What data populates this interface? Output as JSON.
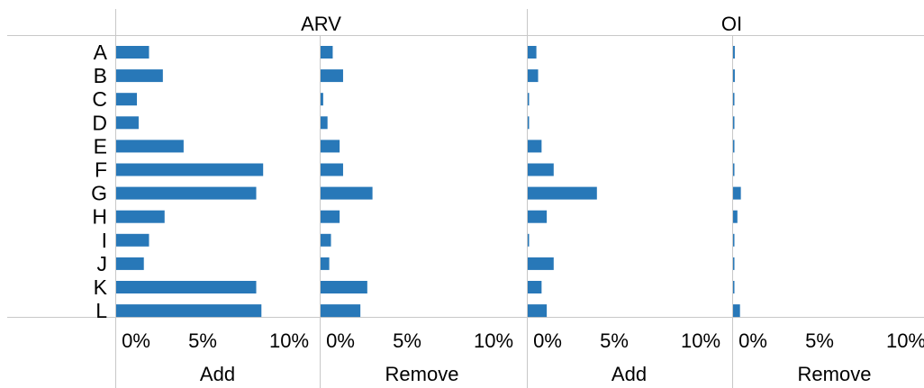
{
  "chart_data": {
    "type": "bar",
    "orientation": "horizontal",
    "categories": [
      "A",
      "B",
      "C",
      "D",
      "E",
      "F",
      "G",
      "H",
      "I",
      "J",
      "K",
      "L"
    ],
    "groups": [
      {
        "label": "ARV",
        "panels": [
          {
            "label": "Add",
            "values": [
              1.9,
              2.7,
              1.2,
              1.3,
              3.9,
              8.5,
              8.1,
              2.8,
              1.9,
              1.6,
              8.1,
              8.4
            ]
          },
          {
            "label": "Remove",
            "values": [
              0.7,
              1.3,
              0.15,
              0.4,
              1.1,
              1.3,
              3.0,
              1.1,
              0.6,
              0.5,
              2.7,
              2.3
            ]
          }
        ]
      },
      {
        "label": "OI",
        "panels": [
          {
            "label": "Add",
            "values": [
              0.5,
              0.6,
              0.05,
              0.05,
              0.8,
              1.5,
              4.0,
              1.1,
              0.05,
              1.5,
              0.8,
              1.1
            ]
          },
          {
            "label": "Remove",
            "values": [
              0.1,
              0.1,
              0.05,
              0.05,
              0.05,
              0.05,
              0.45,
              0.25,
              0.05,
              0.05,
              0.05,
              0.4
            ]
          }
        ]
      }
    ],
    "x_ticks": [
      "0%",
      "5%",
      "10%"
    ],
    "xlim": [
      0,
      10
    ],
    "grid": false,
    "bar_color": "#2878b8",
    "axis_color": "#c8c8c8"
  }
}
